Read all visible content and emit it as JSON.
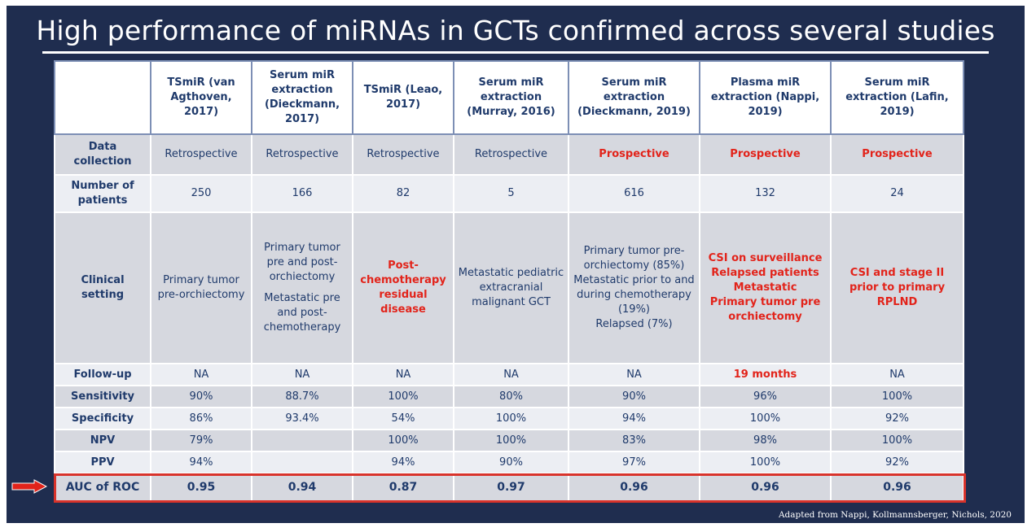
{
  "title": "High performance of miRNAs in GCTs confirmed across several studies",
  "source": "Adapted from Nappi, Kollmannsberger, Nichols, 2020",
  "columns": [
    "TSmiR (van Agthoven, 2017)",
    "Serum miR extraction (Dieckmann, 2017)",
    "TSmiR (Leao, 2017)",
    "Serum miR extraction (Murray, 2016)",
    "Serum miR extraction (Dieckmann, 2019)",
    "Plasma miR extraction (Nappi, 2019)",
    "Serum miR extraction (Lafin, 2019)"
  ],
  "rows": {
    "data_collection": {
      "label": "Data collection",
      "values": [
        "Retrospective",
        "Retrospective",
        "Retrospective",
        "Retrospective",
        "Prospective",
        "Prospective",
        "Prospective"
      ]
    },
    "patients": {
      "label": "Number of patients",
      "values": [
        "250",
        "166",
        "82",
        "5",
        "616",
        "132",
        "24"
      ]
    },
    "clinical": {
      "label": "Clinical setting",
      "c1": "Primary tumor pre-orchiectomy",
      "c2a": "Primary tumor pre and post-orchiectomy",
      "c2b": "Metastatic pre and post-chemotherapy",
      "c3": "Post-chemotherapy residual disease",
      "c4": "Metastatic pediatric extracranial malignant GCT",
      "c5a": "Primary tumor pre-orchiectomy (85%)",
      "c5b": "Metastatic prior to and during chemotherapy (19%)",
      "c5c": "Relapsed (7%)",
      "c6a": "CSI on surveillance",
      "c6b": "Relapsed patients",
      "c6c": "Metastatic",
      "c6d": "Primary tumor pre orchiectomy",
      "c7": "CSI and stage II prior to primary RPLND"
    },
    "followup": {
      "label": "Follow-up",
      "values": [
        "NA",
        "NA",
        "NA",
        "NA",
        "NA",
        "19 months",
        "NA"
      ]
    },
    "sensitivity": {
      "label": "Sensitivity",
      "values": [
        "90%",
        "88.7%",
        "100%",
        "80%",
        "90%",
        "96%",
        "100%"
      ]
    },
    "specificity": {
      "label": "Specificity",
      "values": [
        "86%",
        "93.4%",
        "54%",
        "100%",
        "94%",
        "100%",
        "92%"
      ]
    },
    "npv": {
      "label": "NPV",
      "values": [
        "79%",
        "",
        "100%",
        "100%",
        "83%",
        "98%",
        "100%"
      ]
    },
    "ppv": {
      "label": "PPV",
      "values": [
        "94%",
        "",
        "94%",
        "90%",
        "97%",
        "100%",
        "92%"
      ]
    },
    "auc": {
      "label": "AUC of ROC",
      "values": [
        "0.95",
        "0.94",
        "0.87",
        "0.97",
        "0.96",
        "0.96",
        "0.96"
      ]
    }
  },
  "colors": {
    "background": "#1f2d4f",
    "highlight_red": "#e2231a",
    "table_text": "#1f3a6b"
  },
  "icons": {
    "pointer": "arrow-right-icon"
  }
}
